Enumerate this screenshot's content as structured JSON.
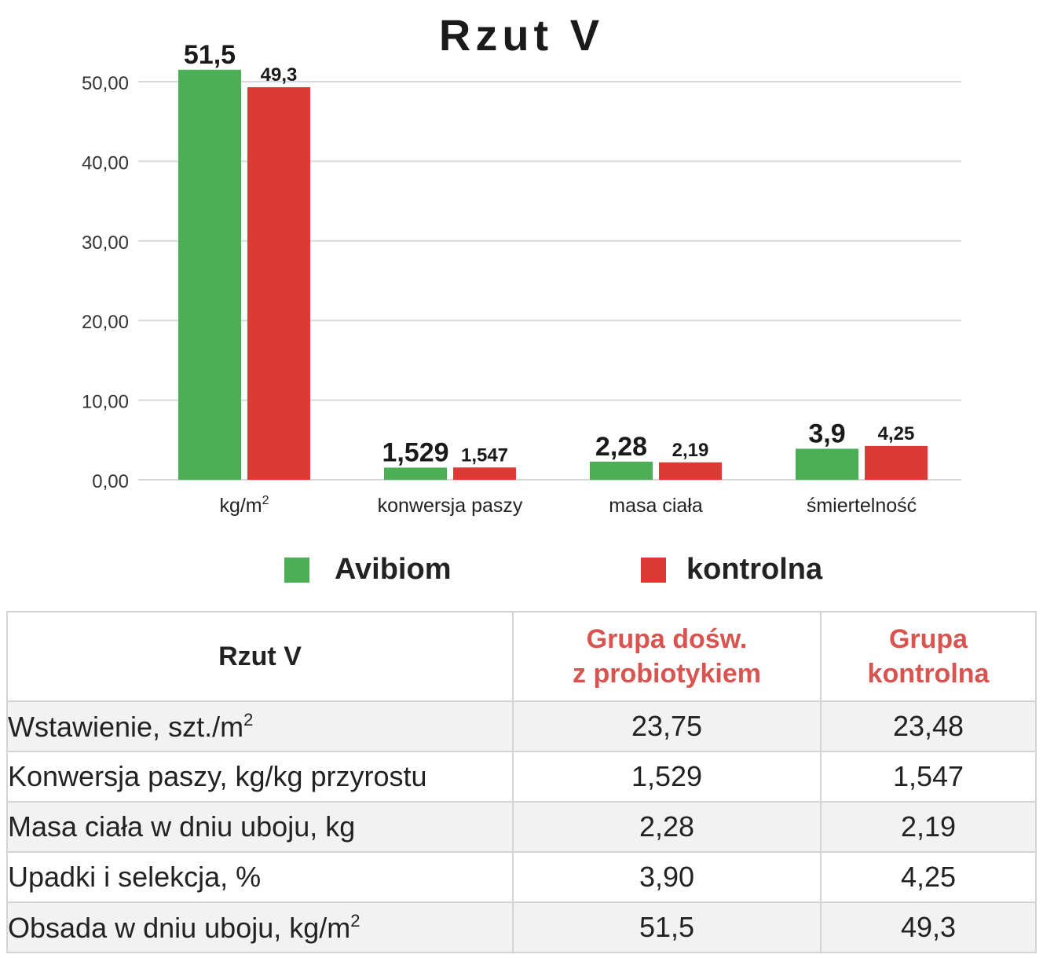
{
  "chart_data": {
    "type": "bar",
    "title": "Rzut V",
    "categories": [
      "kg/m²",
      "konwersja paszy",
      "masa ciała",
      "śmiertelność"
    ],
    "series": [
      {
        "name": "Avibiom",
        "values": [
          51.5,
          1.529,
          2.28,
          3.9
        ],
        "labels": [
          "51,5",
          "1,529",
          "2,28",
          "3,9"
        ],
        "color": "#4cae55"
      },
      {
        "name": "kontrolna",
        "values": [
          49.3,
          1.547,
          2.19,
          4.25
        ],
        "labels": [
          "49,3",
          "1,547",
          "2,19",
          "4,25"
        ],
        "color": "#dc3a34"
      }
    ],
    "ylim": [
      0,
      50
    ],
    "yticks": [
      "0,00",
      "10,00",
      "20,00",
      "30,00",
      "40,00",
      "50,00"
    ],
    "ytick_values": [
      0,
      10,
      20,
      30,
      40,
      50
    ],
    "grid": true,
    "legend": "bottom"
  },
  "table": {
    "header": {
      "corner": "Rzut V",
      "col1": "Grupa dośw.\nz probiotykiem",
      "col2": "Grupa\nkontrolna"
    },
    "rows": [
      {
        "label": "Wstawienie, szt./m²",
        "v1": "23,75",
        "v2": "23,48"
      },
      {
        "label": "Konwersja paszy, kg/kg przyrostu",
        "v1": "1,529",
        "v2": "1,547"
      },
      {
        "label": "Masa ciała w dniu uboju, kg",
        "v1": "2,28",
        "v2": "2,19"
      },
      {
        "label": "Upadki i selekcja, %",
        "v1": "3,90",
        "v2": "4,25"
      },
      {
        "label": "Obsada w dniu uboju, kg/m²",
        "v1": "51,5",
        "v2": "49,3"
      }
    ]
  }
}
